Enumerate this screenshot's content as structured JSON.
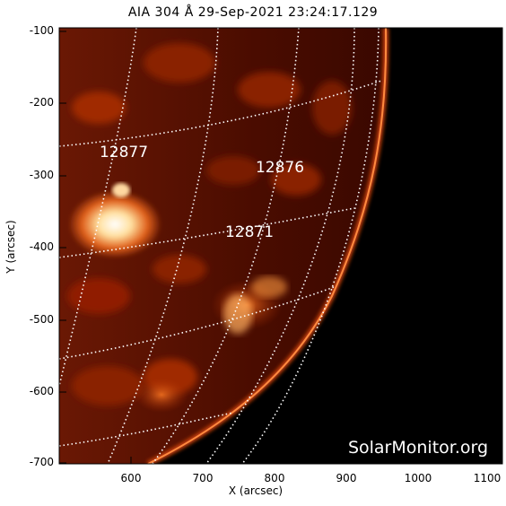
{
  "title": "AIA 304 Å 29-Sep-2021 23:24:17.129",
  "axes": {
    "xlabel": "X (arcsec)",
    "ylabel": "Y (arcsec)",
    "xticks": [
      "600",
      "700",
      "800",
      "900",
      "1000",
      "1100"
    ],
    "yticks": [
      "-100",
      "-200",
      "-300",
      "-400",
      "-500",
      "-600",
      "-700"
    ]
  },
  "regions": [
    {
      "id": "12877",
      "label": "12877"
    },
    {
      "id": "12876",
      "label": "12876"
    },
    {
      "id": "12871",
      "label": "12871"
    }
  ],
  "watermark": "SolarMonitor.org",
  "colors": {
    "background": "#000000",
    "plasma_dark": "#5a0d00",
    "plasma_mid": "#c8400a",
    "plasma_bright": "#ffe8c0",
    "grid": "#ffffff"
  }
}
